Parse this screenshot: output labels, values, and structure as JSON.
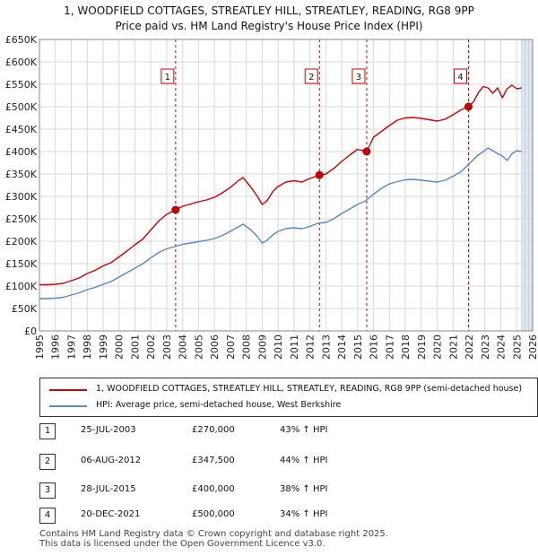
{
  "chart_data": {
    "type": "line",
    "title": "1, WOODFIELD COTTAGES, STREATLEY HILL, STREATLEY, READING, RG8 9PP",
    "subtitle": "Price paid vs. HM Land Registry's House Price Index (HPI)",
    "xlabel": "",
    "ylabel": "",
    "xlim": [
      1995,
      2026
    ],
    "ylim": [
      0,
      650000
    ],
    "x_ticks": [
      1995,
      1996,
      1997,
      1998,
      1999,
      2000,
      2001,
      2002,
      2003,
      2004,
      2005,
      2006,
      2007,
      2008,
      2009,
      2010,
      2011,
      2012,
      2013,
      2014,
      2015,
      2016,
      2017,
      2018,
      2019,
      2020,
      2021,
      2022,
      2023,
      2024,
      2025,
      2026
    ],
    "y_ticks": [
      {
        "value": 0,
        "label": "£0"
      },
      {
        "value": 50000,
        "label": "£50K"
      },
      {
        "value": 100000,
        "label": "£100K"
      },
      {
        "value": 150000,
        "label": "£150K"
      },
      {
        "value": 200000,
        "label": "£200K"
      },
      {
        "value": 250000,
        "label": "£250K"
      },
      {
        "value": 300000,
        "label": "£300K"
      },
      {
        "value": 350000,
        "label": "£350K"
      },
      {
        "value": 400000,
        "label": "£400K"
      },
      {
        "value": 450000,
        "label": "£450K"
      },
      {
        "value": 500000,
        "label": "£500K"
      },
      {
        "value": 550000,
        "label": "£550K"
      },
      {
        "value": 600000,
        "label": "£600K"
      },
      {
        "value": 650000,
        "label": "£650K"
      }
    ],
    "grid": true,
    "series": [
      {
        "name": "1, WOODFIELD COTTAGES, STREATLEY HILL, STREATLEY, READING, RG8 9PP (semi-detached house)",
        "color": "#cc0000",
        "x": [
          1995.0,
          1995.5,
          1996.0,
          1996.5,
          1997.0,
          1997.5,
          1998.0,
          1998.5,
          1999.0,
          1999.5,
          2000.0,
          2000.5,
          2001.0,
          2001.5,
          2002.0,
          2002.5,
          2003.0,
          2003.56,
          2004.0,
          2004.5,
          2005.0,
          2005.5,
          2006.0,
          2006.5,
          2007.0,
          2007.5,
          2007.8,
          2008.3,
          2008.7,
          2009.0,
          2009.3,
          2009.7,
          2010.0,
          2010.5,
          2011.0,
          2011.5,
          2012.0,
          2012.6,
          2013.0,
          2013.5,
          2014.0,
          2014.5,
          2015.0,
          2015.57,
          2016.0,
          2016.5,
          2017.0,
          2017.5,
          2018.0,
          2018.5,
          2019.0,
          2019.5,
          2020.0,
          2020.5,
          2021.0,
          2021.5,
          2021.97,
          2022.3,
          2022.6,
          2022.9,
          2023.2,
          2023.5,
          2023.8,
          2024.1,
          2024.4,
          2024.7,
          2025.0,
          2025.3
        ],
        "values": [
          103000,
          103000,
          104000,
          106000,
          112000,
          118000,
          128000,
          135000,
          145000,
          152000,
          165000,
          178000,
          192000,
          205000,
          225000,
          245000,
          260000,
          270000,
          278000,
          283000,
          288000,
          292000,
          298000,
          308000,
          320000,
          335000,
          342000,
          320000,
          300000,
          282000,
          290000,
          312000,
          322000,
          332000,
          335000,
          332000,
          340000,
          347500,
          350000,
          362000,
          378000,
          392000,
          405000,
          400000,
          432000,
          445000,
          458000,
          470000,
          475000,
          476000,
          474000,
          471000,
          468000,
          472000,
          482000,
          493000,
          500000,
          512000,
          532000,
          545000,
          542000,
          530000,
          542000,
          520000,
          540000,
          548000,
          540000,
          542000
        ]
      },
      {
        "name": "HPI: Average price, semi-detached house, West Berkshire",
        "color": "#5588cc",
        "x": [
          1995.0,
          1995.5,
          1996.0,
          1996.5,
          1997.0,
          1997.5,
          1998.0,
          1998.5,
          1999.0,
          1999.5,
          2000.0,
          2000.5,
          2001.0,
          2001.5,
          2002.0,
          2002.5,
          2003.0,
          2003.5,
          2004.0,
          2004.5,
          2005.0,
          2005.5,
          2006.0,
          2006.5,
          2007.0,
          2007.5,
          2007.8,
          2008.3,
          2008.7,
          2009.0,
          2009.3,
          2009.7,
          2010.0,
          2010.5,
          2011.0,
          2011.5,
          2012.0,
          2012.5,
          2013.0,
          2013.5,
          2014.0,
          2014.5,
          2015.0,
          2015.5,
          2016.0,
          2016.5,
          2017.0,
          2017.5,
          2018.0,
          2018.5,
          2019.0,
          2019.5,
          2020.0,
          2020.5,
          2021.0,
          2021.5,
          2022.0,
          2022.5,
          2022.9,
          2023.2,
          2023.5,
          2023.8,
          2024.1,
          2024.4,
          2024.7,
          2025.0,
          2025.3
        ],
        "values": [
          72000,
          72000,
          73000,
          75000,
          80000,
          85000,
          92000,
          97000,
          104000,
          110000,
          120000,
          130000,
          140000,
          150000,
          163000,
          175000,
          183000,
          188000,
          193000,
          196000,
          199000,
          202000,
          206000,
          213000,
          222000,
          232000,
          238000,
          225000,
          210000,
          196000,
          202000,
          215000,
          222000,
          228000,
          230000,
          228000,
          233000,
          240000,
          242000,
          250000,
          262000,
          272000,
          282000,
          290000,
          305000,
          318000,
          328000,
          333000,
          337000,
          338000,
          336000,
          334000,
          332000,
          336000,
          345000,
          355000,
          372000,
          390000,
          400000,
          408000,
          402000,
          395000,
          390000,
          380000,
          395000,
          402000,
          400000
        ]
      }
    ],
    "sales": [
      {
        "label": "1",
        "x": 2003.56,
        "value": 270000
      },
      {
        "label": "2",
        "x": 2012.6,
        "value": 347500
      },
      {
        "label": "3",
        "x": 2015.57,
        "value": 400000
      },
      {
        "label": "4",
        "x": 2021.97,
        "value": 500000
      }
    ],
    "colors": {
      "property": "#cc0000",
      "hpi": "#5588cc",
      "band": "#dde6f3",
      "grid": "#d8d8d8",
      "vline": "#cc0000"
    }
  },
  "header": {
    "title": "1, WOODFIELD COTTAGES, STREATLEY HILL, STREATLEY, READING, RG8 9PP",
    "subtitle": "Price paid vs. HM Land Registry's House Price Index (HPI)"
  },
  "legend": {
    "property_label": "1, WOODFIELD COTTAGES, STREATLEY HILL, STREATLEY, READING, RG8 9PP (semi-detached house)",
    "hpi_label": "HPI: Average price, semi-detached house, West Berkshire"
  },
  "sales_table": [
    {
      "num": "1",
      "date": "25-JUL-2003",
      "price": "£270,000",
      "pct": "43% ↑ HPI"
    },
    {
      "num": "2",
      "date": "06-AUG-2012",
      "price": "£347,500",
      "pct": "44% ↑ HPI"
    },
    {
      "num": "3",
      "date": "28-JUL-2015",
      "price": "£400,000",
      "pct": "38% ↑ HPI"
    },
    {
      "num": "4",
      "date": "20-DEC-2021",
      "price": "£500,000",
      "pct": "34% ↑ HPI"
    }
  ],
  "footer": {
    "line1": "Contains HM Land Registry data © Crown copyright and database right 2025.",
    "line2": "This data is licensed under the Open Government Licence v3.0."
  }
}
